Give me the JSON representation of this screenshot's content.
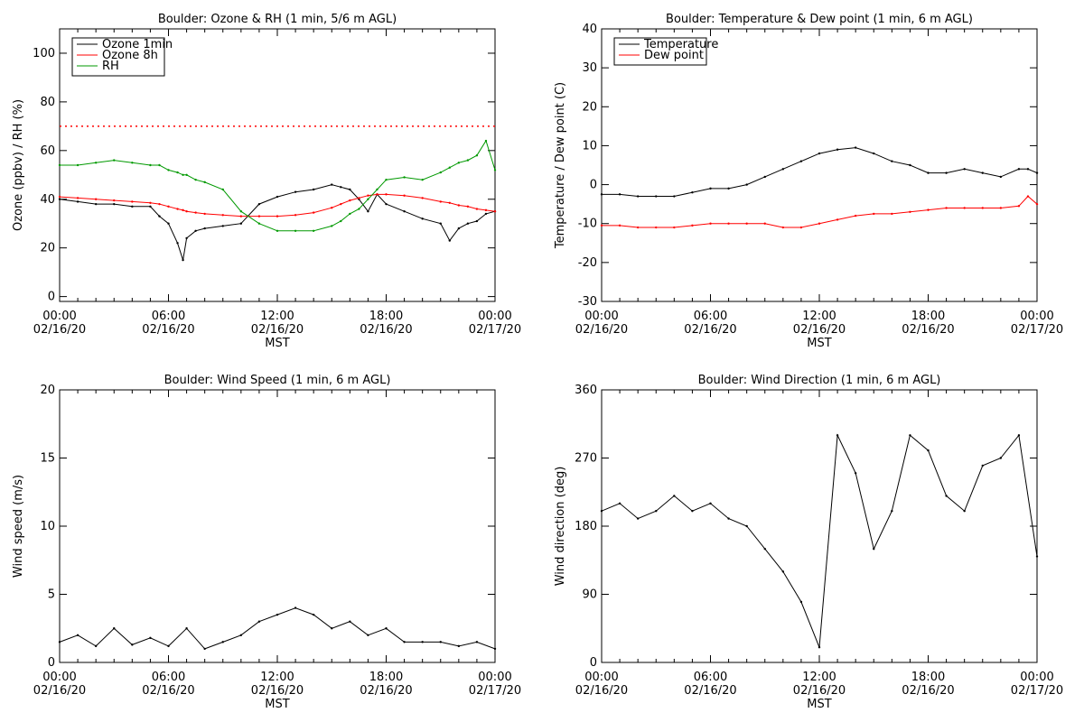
{
  "x_ticks": [
    {
      "time": "00:00",
      "date": "02/16/20"
    },
    {
      "time": "06:00",
      "date": "02/16/20"
    },
    {
      "time": "12:00",
      "date": "02/16/20"
    },
    {
      "time": "18:00",
      "date": "02/16/20"
    },
    {
      "time": "00:00",
      "date": "02/17/20"
    }
  ],
  "chart_data": [
    {
      "type": "line",
      "title": "Boulder: Ozone & RH (1 min, 5/6 m AGL)",
      "xlabel": "MST",
      "ylabel": "Ozone (ppbv) / RH (%)",
      "xlim": [
        "02/16/20 00:00",
        "02/17/20 00:00"
      ],
      "ylim": [
        -2,
        110
      ],
      "yticks": [
        0,
        20,
        40,
        60,
        80,
        100
      ],
      "grid": false,
      "legend": "top-left",
      "reference_line": {
        "y": 70,
        "color": "#ff0000",
        "style": "dotted"
      },
      "x_hours": [
        0,
        1,
        2,
        3,
        4,
        5,
        5.5,
        6,
        6.5,
        6.8,
        7,
        7.5,
        8,
        9,
        10,
        11,
        12,
        13,
        14,
        15,
        15.5,
        16,
        16.5,
        17,
        17.5,
        18,
        19,
        20,
        21,
        21.5,
        22,
        22.5,
        23,
        23.5,
        24
      ],
      "series": [
        {
          "name": "Ozone 1min",
          "color": "#000000",
          "values": [
            40,
            39,
            38,
            38,
            37,
            37,
            33,
            30,
            22,
            15,
            24,
            27,
            28,
            29,
            30,
            38,
            41,
            43,
            44,
            46,
            45,
            44,
            40,
            35,
            42,
            38,
            35,
            32,
            30,
            23,
            28,
            30,
            31,
            34,
            35
          ]
        },
        {
          "name": "Ozone 8h",
          "color": "#ff0000",
          "values": [
            41,
            40.5,
            40,
            39.5,
            39,
            38.5,
            38,
            37,
            36,
            35.5,
            35,
            34.5,
            34,
            33.5,
            33,
            33,
            33,
            33.5,
            34.5,
            36.5,
            38,
            39.5,
            40.5,
            41.5,
            42,
            42,
            41.5,
            40.5,
            39,
            38.5,
            37.5,
            37,
            36,
            35.5,
            35
          ]
        },
        {
          "name": "RH",
          "color": "#009900",
          "values": [
            54,
            54,
            55,
            56,
            55,
            54,
            54,
            52,
            51,
            50,
            50,
            48,
            47,
            44,
            35,
            30,
            27,
            27,
            27,
            29,
            31,
            34,
            36,
            40,
            44,
            48,
            49,
            48,
            51,
            53,
            55,
            56,
            58,
            64,
            52
          ]
        }
      ]
    },
    {
      "type": "line",
      "title": "Boulder: Temperature & Dew point (1 min, 6 m AGL)",
      "xlabel": "MST",
      "ylabel": "Temperature / Dew point (C)",
      "xlim": [
        "02/16/20 00:00",
        "02/17/20 00:00"
      ],
      "ylim": [
        -30,
        40
      ],
      "yticks": [
        -30,
        -20,
        -10,
        0,
        10,
        20,
        30,
        40
      ],
      "grid": false,
      "legend": "top-left",
      "x_hours": [
        0,
        1,
        2,
        3,
        4,
        5,
        6,
        7,
        8,
        9,
        10,
        11,
        12,
        13,
        14,
        15,
        16,
        17,
        18,
        19,
        20,
        21,
        22,
        23,
        23.5,
        24
      ],
      "series": [
        {
          "name": "Temperature",
          "color": "#000000",
          "values": [
            -2.5,
            -2.5,
            -3,
            -3,
            -3,
            -2,
            -1,
            -1,
            0,
            2,
            4,
            6,
            8,
            9,
            9.5,
            8,
            6,
            5,
            3,
            3,
            4,
            3,
            2,
            4,
            4,
            3
          ]
        },
        {
          "name": "Dew point",
          "color": "#ff0000",
          "values": [
            -10.5,
            -10.5,
            -11,
            -11,
            -11,
            -10.5,
            -10,
            -10,
            -10,
            -10,
            -11,
            -11,
            -10,
            -9,
            -8,
            -7.5,
            -7.5,
            -7,
            -6.5,
            -6,
            -6,
            -6,
            -6,
            -5.5,
            -3,
            -5
          ]
        }
      ]
    },
    {
      "type": "line",
      "title": "Boulder: Wind Speed (1 min, 6 m AGL)",
      "xlabel": "MST",
      "ylabel": "Wind speed (m/s)",
      "xlim": [
        "02/16/20 00:00",
        "02/17/20 00:00"
      ],
      "ylim": [
        0,
        20
      ],
      "yticks": [
        0,
        5,
        10,
        15,
        20
      ],
      "grid": false,
      "x_hours": [
        0,
        1,
        2,
        3,
        4,
        5,
        6,
        7,
        8,
        9,
        10,
        11,
        12,
        13,
        14,
        15,
        16,
        17,
        18,
        19,
        20,
        21,
        22,
        23,
        24
      ],
      "series": [
        {
          "color": "#000000",
          "values": [
            1.5,
            2.0,
            1.2,
            2.5,
            1.3,
            1.8,
            1.2,
            2.5,
            1.0,
            1.5,
            2.0,
            3.0,
            3.5,
            4.0,
            3.5,
            2.5,
            3.0,
            2.0,
            2.5,
            1.5,
            1.5,
            1.5,
            1.2,
            1.5,
            1.0
          ]
        }
      ]
    },
    {
      "type": "line",
      "title": "Boulder: Wind Direction (1 min, 6 m AGL)",
      "xlabel": "MST",
      "ylabel": "Wind direction (deg)",
      "xlim": [
        "02/16/20 00:00",
        "02/17/20 00:00"
      ],
      "ylim": [
        0,
        360
      ],
      "yticks": [
        0,
        90,
        180,
        270,
        360
      ],
      "grid": false,
      "x_hours": [
        0,
        1,
        2,
        3,
        4,
        5,
        6,
        7,
        8,
        9,
        10,
        11,
        12,
        13,
        14,
        15,
        16,
        17,
        18,
        19,
        20,
        21,
        22,
        23,
        24
      ],
      "series": [
        {
          "color": "#000000",
          "values": [
            200,
            210,
            190,
            200,
            220,
            200,
            210,
            190,
            180,
            150,
            120,
            80,
            20,
            300,
            250,
            150,
            200,
            300,
            280,
            220,
            200,
            260,
            270,
            300,
            140
          ]
        }
      ]
    }
  ]
}
